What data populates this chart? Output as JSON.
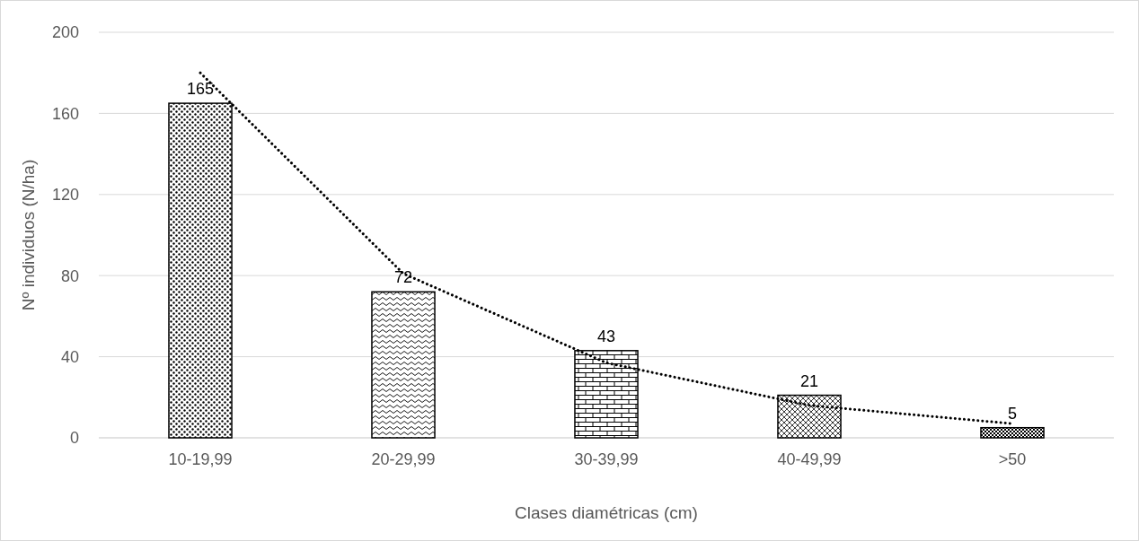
{
  "chart_data": {
    "type": "bar",
    "xlabel": "Clases diamétricas (cm)",
    "ylabel": "Nº individuos (N/ha)",
    "categories": [
      "10-19,99",
      "20-29,99",
      "30-39,99",
      "40-49,99",
      ">50"
    ],
    "series": [
      {
        "color": "#000000",
        "values": [
          165,
          72,
          43,
          21,
          5
        ],
        "value_labels": [
          "165",
          "72",
          "43",
          "21",
          "5"
        ]
      },
      {
        "type": "line",
        "color": "#000000",
        "x": [
          "10-19,99",
          "20-29,99",
          "30-39,99",
          "40-49,99",
          ">50"
        ],
        "values": [
          180,
          81,
          37,
          16,
          7
        ],
        "line_style": "dotted",
        "marker": "none"
      }
    ],
    "ylim": [
      0,
      200
    ],
    "yticks": [
      0,
      40,
      80,
      120,
      160,
      200
    ],
    "grid": "y"
  }
}
